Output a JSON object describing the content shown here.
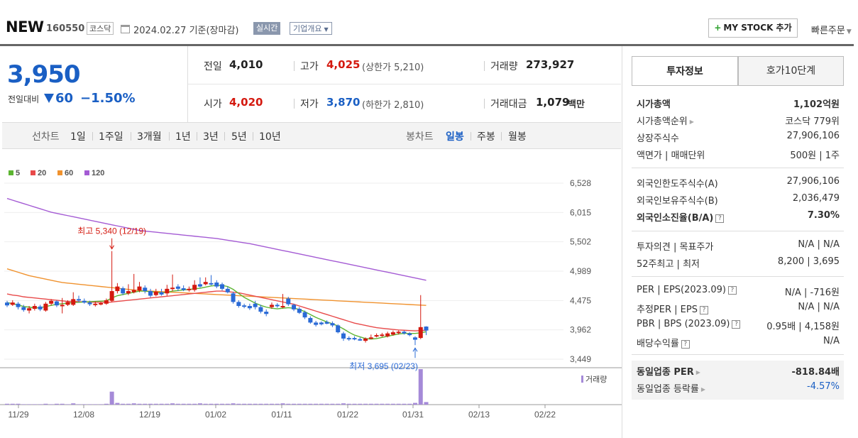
{
  "header": {
    "name": "NEW",
    "code": "160550",
    "market": "코스닥",
    "date": "2024.02.27 기준(장마감)",
    "realtime_label": "실시간",
    "company_label": "기업개요",
    "mystock_label": "MY STOCK 추가",
    "quick_order_label": "빠른주문"
  },
  "quote": {
    "price": "3,950",
    "change_label": "전일대비",
    "change": "60",
    "change_pct": "−1.50%",
    "prev_close_label": "전일",
    "prev_close": "4,010",
    "open_label": "시가",
    "open": "4,020",
    "high_label": "고가",
    "high": "4,025",
    "upper_limit": "(상한가 5,210)",
    "low_label": "저가",
    "low": "3,870",
    "lower_limit": "(하한가 2,810)",
    "volume_label": "거래량",
    "volume": "273,927",
    "value_label": "거래대금",
    "value": "1,079",
    "value_unit": "백만"
  },
  "range_bar": {
    "line_label": "선차트",
    "line_ranges": [
      "1일",
      "1주일",
      "3개월",
      "1년",
      "3년",
      "5년",
      "10년"
    ],
    "candle_label": "봉차트",
    "candle_ranges": [
      "일봉",
      "주봉",
      "월봉"
    ],
    "active_candle": "일봉"
  },
  "chart_data": {
    "type": "candlestick",
    "legend": [
      {
        "name": "5",
        "color": "#5cb531"
      },
      {
        "name": "20",
        "color": "#e84a4a"
      },
      {
        "name": "60",
        "color": "#f0922e"
      },
      {
        "name": "120",
        "color": "#a45bd4"
      }
    ],
    "y_ticks": [
      "6,528",
      "6,015",
      "5,502",
      "4,989",
      "4,475",
      "3,962",
      "3,449"
    ],
    "ylim": [
      3449,
      6528
    ],
    "x_ticks": [
      "11/29",
      "12/08",
      "12/19",
      "01/02",
      "01/11",
      "01/22",
      "01/31",
      "02/13",
      "02/22"
    ],
    "annotation_high": "최고 5,340 (12/19)",
    "annotation_low": "최저 3,695 (02/23)",
    "volume_label": "거래량",
    "candles": [
      {
        "o": 4440,
        "c": 4390,
        "h": 4470,
        "l": 4360
      },
      {
        "o": 4400,
        "c": 4440,
        "h": 4480,
        "l": 4380
      },
      {
        "o": 4420,
        "c": 4360,
        "h": 4450,
        "l": 4320
      },
      {
        "o": 4360,
        "c": 4310,
        "h": 4400,
        "l": 4280
      },
      {
        "o": 4300,
        "c": 4340,
        "h": 4380,
        "l": 4250
      },
      {
        "o": 4330,
        "c": 4380,
        "h": 4420,
        "l": 4300
      },
      {
        "o": 4370,
        "c": 4320,
        "h": 4400,
        "l": 4290
      },
      {
        "o": 4300,
        "c": 4420,
        "h": 4450,
        "l": 4280
      },
      {
        "o": 4420,
        "c": 4470,
        "h": 4500,
        "l": 4390
      },
      {
        "o": 4460,
        "c": 4390,
        "h": 4480,
        "l": 4360
      },
      {
        "o": 4380,
        "c": 4400,
        "h": 4520,
        "l": 4250
      },
      {
        "o": 4400,
        "c": 4450,
        "h": 4480,
        "l": 4380
      },
      {
        "o": 4400,
        "c": 4500,
        "h": 4620,
        "l": 4380
      },
      {
        "o": 4500,
        "c": 4480,
        "h": 4560,
        "l": 4440
      },
      {
        "o": 4470,
        "c": 4440,
        "h": 4510,
        "l": 4420
      },
      {
        "o": 4440,
        "c": 4410,
        "h": 4470,
        "l": 4380
      },
      {
        "o": 4400,
        "c": 4420,
        "h": 4460,
        "l": 4370
      },
      {
        "o": 4410,
        "c": 4430,
        "h": 4450,
        "l": 4390
      },
      {
        "o": 4420,
        "c": 4480,
        "h": 4510,
        "l": 4400
      },
      {
        "o": 4470,
        "c": 4640,
        "h": 5340,
        "l": 4450
      },
      {
        "o": 4640,
        "c": 4720,
        "h": 4780,
        "l": 4600
      },
      {
        "o": 4690,
        "c": 4600,
        "h": 4720,
        "l": 4570
      },
      {
        "o": 4600,
        "c": 4640,
        "h": 4760,
        "l": 4570
      },
      {
        "o": 4620,
        "c": 4660,
        "h": 4940,
        "l": 4600
      },
      {
        "o": 4650,
        "c": 4720,
        "h": 4800,
        "l": 4620
      },
      {
        "o": 4700,
        "c": 4640,
        "h": 4740,
        "l": 4600
      },
      {
        "o": 4640,
        "c": 4560,
        "h": 4680,
        "l": 4530
      },
      {
        "o": 4570,
        "c": 4630,
        "h": 4680,
        "l": 4550
      },
      {
        "o": 4620,
        "c": 4580,
        "h": 4680,
        "l": 4560
      },
      {
        "o": 4600,
        "c": 4680,
        "h": 4750,
        "l": 4560
      },
      {
        "o": 4680,
        "c": 4700,
        "h": 4930,
        "l": 4640
      },
      {
        "o": 4720,
        "c": 4680,
        "h": 4760,
        "l": 4640
      },
      {
        "o": 4690,
        "c": 4660,
        "h": 4740,
        "l": 4640
      },
      {
        "o": 4660,
        "c": 4680,
        "h": 4720,
        "l": 4630
      },
      {
        "o": 4660,
        "c": 4750,
        "h": 4830,
        "l": 4630
      },
      {
        "o": 4760,
        "c": 4720,
        "h": 4880,
        "l": 4700
      },
      {
        "o": 4760,
        "c": 4800,
        "h": 4880,
        "l": 4740
      },
      {
        "o": 4780,
        "c": 4760,
        "h": 4920,
        "l": 4740
      },
      {
        "o": 4790,
        "c": 4720,
        "h": 4830,
        "l": 4690
      },
      {
        "o": 4760,
        "c": 4680,
        "h": 4790,
        "l": 4650
      },
      {
        "o": 4680,
        "c": 4620,
        "h": 4720,
        "l": 4600
      },
      {
        "o": 4600,
        "c": 4450,
        "h": 4630,
        "l": 4420
      },
      {
        "o": 4450,
        "c": 4380,
        "h": 4480,
        "l": 4350
      },
      {
        "o": 4390,
        "c": 4370,
        "h": 4420,
        "l": 4340
      },
      {
        "o": 4380,
        "c": 4340,
        "h": 4420,
        "l": 4310
      },
      {
        "o": 4420,
        "c": 4360,
        "h": 4470,
        "l": 4320
      },
      {
        "o": 4360,
        "c": 4280,
        "h": 4400,
        "l": 4250
      },
      {
        "o": 4280,
        "c": 4240,
        "h": 4320,
        "l": 4200
      },
      {
        "o": 4360,
        "c": 4400,
        "h": 4440,
        "l": 4330
      },
      {
        "o": 4400,
        "c": 4390,
        "h": 4430,
        "l": 4350
      },
      {
        "o": 4360,
        "c": 4380,
        "h": 4590,
        "l": 4340
      },
      {
        "o": 4510,
        "c": 4410,
        "h": 4540,
        "l": 4380
      },
      {
        "o": 4400,
        "c": 4320,
        "h": 4420,
        "l": 4290
      },
      {
        "o": 4330,
        "c": 4260,
        "h": 4360,
        "l": 4240
      },
      {
        "o": 4270,
        "c": 4180,
        "h": 4300,
        "l": 4150
      },
      {
        "o": 4170,
        "c": 4090,
        "h": 4200,
        "l": 4070
      },
      {
        "o": 4090,
        "c": 4050,
        "h": 4120,
        "l": 4020
      },
      {
        "o": 4090,
        "c": 4060,
        "h": 4110,
        "l": 4040
      },
      {
        "o": 4100,
        "c": 4070,
        "h": 4130,
        "l": 4060
      },
      {
        "o": 4080,
        "c": 4040,
        "h": 4110,
        "l": 4010
      },
      {
        "o": 4040,
        "c": 3920,
        "h": 4060,
        "l": 3900
      },
      {
        "o": 3900,
        "c": 3810,
        "h": 3930,
        "l": 3770
      },
      {
        "o": 3820,
        "c": 3800,
        "h": 3850,
        "l": 3770
      },
      {
        "o": 3820,
        "c": 3800,
        "h": 3850,
        "l": 3780
      },
      {
        "o": 3800,
        "c": 3790,
        "h": 3830,
        "l": 3770
      },
      {
        "o": 3770,
        "c": 3810,
        "h": 3830,
        "l": 3740
      },
      {
        "o": 3810,
        "c": 3830,
        "h": 3880,
        "l": 3800
      },
      {
        "o": 3850,
        "c": 3870,
        "h": 3900,
        "l": 3830
      },
      {
        "o": 3860,
        "c": 3880,
        "h": 3910,
        "l": 3840
      },
      {
        "o": 3850,
        "c": 3900,
        "h": 3930,
        "l": 3830
      },
      {
        "o": 3880,
        "c": 3920,
        "h": 3950,
        "l": 3860
      },
      {
        "o": 3910,
        "c": 3930,
        "h": 3950,
        "l": 3880
      },
      {
        "o": 3930,
        "c": 3900,
        "h": 3950,
        "l": 3880
      },
      {
        "o": 3900,
        "c": 3870,
        "h": 3920,
        "l": 3850
      },
      {
        "o": 3830,
        "c": 3790,
        "h": 3850,
        "l": 3695
      },
      {
        "o": 3820,
        "c": 4010,
        "h": 4570,
        "l": 3800
      },
      {
        "o": 4020,
        "c": 3950,
        "h": 4025,
        "l": 3870
      }
    ],
    "volumes": [
      2,
      2,
      2,
      1,
      1,
      1,
      1,
      2,
      1,
      2,
      2,
      1,
      3,
      1,
      1,
      1,
      1,
      1,
      2,
      30,
      4,
      2,
      2,
      3,
      2,
      2,
      2,
      2,
      2,
      2,
      3,
      2,
      2,
      2,
      2,
      3,
      2,
      2,
      2,
      2,
      2,
      3,
      2,
      2,
      2,
      2,
      2,
      2,
      2,
      2,
      3,
      2,
      2,
      2,
      2,
      2,
      2,
      2,
      2,
      2,
      2,
      3,
      2,
      2,
      2,
      2,
      2,
      2,
      2,
      2,
      2,
      2,
      2,
      2,
      4,
      82,
      6
    ],
    "ma5": [
      4440,
      4420,
      4400,
      4370,
      4360,
      4345,
      4350,
      4370,
      4390,
      4410,
      4420,
      4430,
      4440,
      4445,
      4450,
      4455,
      4460,
      4465,
      4470,
      4520,
      4560,
      4580,
      4600,
      4620,
      4640,
      4640,
      4630,
      4620,
      4610,
      4620,
      4640,
      4650,
      4660,
      4670,
      4680,
      4690,
      4710,
      4730,
      4740,
      4740,
      4720,
      4670,
      4600,
      4530,
      4480,
      4430,
      4390,
      4360,
      4340,
      4330,
      4340,
      4350,
      4340,
      4320,
      4280,
      4230,
      4180,
      4140,
      4100,
      4070,
      4030,
      3980,
      3920,
      3870,
      3840,
      3810,
      3800,
      3810,
      3830,
      3850,
      3870,
      3890,
      3900,
      3900,
      3900,
      3910,
      3930
    ],
    "ma20": [
      4590,
      4570,
      4560,
      4540,
      4530,
      4520,
      4510,
      4500,
      4490,
      4480,
      4470,
      4460,
      4460,
      4455,
      4450,
      4450,
      4445,
      4445,
      4440,
      4450,
      4460,
      4470,
      4480,
      4490,
      4500,
      4510,
      4520,
      4530,
      4540,
      4550,
      4560,
      4570,
      4580,
      4590,
      4600,
      4610,
      4620,
      4630,
      4640,
      4640,
      4630,
      4620,
      4610,
      4590,
      4570,
      4550,
      4530,
      4510,
      4490,
      4470,
      4450,
      4430,
      4410,
      4380,
      4350,
      4320,
      4290,
      4260,
      4230,
      4200,
      4170,
      4140,
      4110,
      4080,
      4060,
      4040,
      4020,
      4000,
      3990,
      3980,
      3970,
      3960,
      3955,
      3950,
      3945,
      3950,
      3955
    ],
    "ma60": [
      5030,
      5000,
      4970,
      4940,
      4910,
      4890,
      4870,
      4850,
      4830,
      4810,
      4790,
      4780,
      4770,
      4760,
      4750,
      4740,
      4730,
      4720,
      4710,
      4700,
      4690,
      4680,
      4670,
      4660,
      4650,
      4640,
      4640,
      4635,
      4630,
      4625,
      4620,
      4615,
      4610,
      4605,
      4600,
      4595,
      4590,
      4585,
      4580,
      4575,
      4570,
      4565,
      4560,
      4555,
      4550,
      4545,
      4540,
      4535,
      4530,
      4525,
      4520,
      4515,
      4510,
      4505,
      4500,
      4495,
      4490,
      4485,
      4480,
      4475,
      4470,
      4465,
      4460,
      4455,
      4450,
      4445,
      4440,
      4435,
      4430,
      4425,
      4420,
      4415,
      4410,
      4405,
      4400,
      4395,
      4390
    ],
    "ma120": [
      6260,
      6230,
      6200,
      6170,
      6140,
      6110,
      6080,
      6050,
      6020,
      6000,
      5980,
      5960,
      5940,
      5920,
      5900,
      5880,
      5860,
      5840,
      5820,
      5800,
      5780,
      5760,
      5740,
      5720,
      5700,
      5690,
      5680,
      5670,
      5660,
      5650,
      5640,
      5630,
      5620,
      5610,
      5600,
      5590,
      5580,
      5570,
      5560,
      5545,
      5530,
      5515,
      5500,
      5485,
      5470,
      5450,
      5430,
      5410,
      5390,
      5370,
      5350,
      5330,
      5310,
      5290,
      5270,
      5250,
      5230,
      5210,
      5190,
      5170,
      5150,
      5130,
      5110,
      5090,
      5070,
      5050,
      5030,
      5010,
      4990,
      4970,
      4950,
      4930,
      4910,
      4890,
      4870,
      4850,
      4830
    ]
  },
  "invest_panel": {
    "tab_info": "투자정보",
    "tab_orderbook": "호가10단계",
    "rows1": [
      {
        "k": "시가총액",
        "v": "1,102억원",
        "bold": true
      },
      {
        "k": "시가총액순위",
        "v": "코스닥 779위"
      },
      {
        "k": "상장주식수",
        "v": "27,906,106"
      },
      {
        "k": "액면가 | 매매단위",
        "v": "500원 | 1주"
      }
    ],
    "rows2": [
      {
        "k": "외국인한도주식수(A)",
        "v": "27,906,106"
      },
      {
        "k": "외국인보유주식수(B)",
        "v": "2,036,479"
      },
      {
        "k": "외국인소진율(B/A)",
        "v": "7.30%",
        "bold": true
      }
    ],
    "rows3": [
      {
        "k": "투자의견 | 목표주가",
        "v": "N/A | N/A"
      },
      {
        "k": "52주최고 | 최저",
        "v": "8,200 | 3,695"
      }
    ],
    "rows4": [
      {
        "k": "PER | EPS(2023.09)",
        "v": "N/A | -716원"
      },
      {
        "k": "추정PER | EPS",
        "v": "N/A | N/A"
      },
      {
        "k": "PBR | BPS (2023.09)",
        "v": "0.95배 | 4,158원"
      },
      {
        "k": "배당수익률",
        "v": "N/A"
      }
    ],
    "rows5": [
      {
        "k": "동일업종 PER",
        "v": "-818.84배",
        "bold": true
      },
      {
        "k": "동일업종 등락률",
        "v": "-4.57%",
        "color": "#1a5fc4"
      }
    ]
  }
}
